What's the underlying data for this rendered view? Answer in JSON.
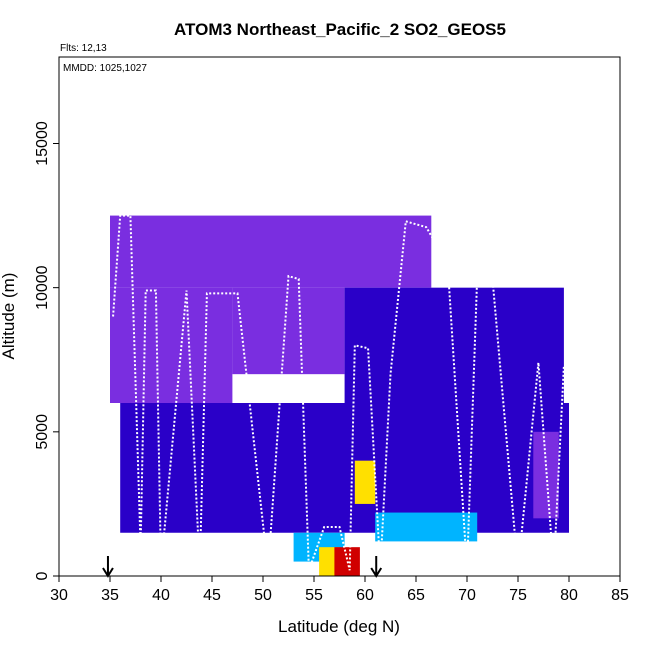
{
  "chart_data": {
    "type": "heatmap",
    "title": "ATOM3 Northeast_Pacific_2 SO2_GEOS5",
    "annotations": [
      "Flts: 12,13",
      "MMDD: 1025,1027"
    ],
    "xlabel": "Latitude (deg N)",
    "ylabel": "Altitude (m)",
    "xlim": [
      30,
      85
    ],
    "ylim": [
      0,
      18000
    ],
    "x_ticks": [
      30,
      35,
      40,
      45,
      50,
      55,
      60,
      65,
      70,
      75,
      80,
      85
    ],
    "y_ticks": [
      0,
      5000,
      10000,
      15000
    ],
    "y_tick_labels": [
      "0",
      "5000",
      "10000",
      "15000"
    ],
    "grid": false,
    "legend": "none",
    "arrow_markers_lat": [
      34.8,
      61.1
    ],
    "colors": {
      "low": "#2a00c8",
      "background": "#7a2ee0",
      "mid": "#00b4ff",
      "high": "#ffe000",
      "peak": "#d00000",
      "flight_track": "#ffffff"
    },
    "heatmap_cells": [
      {
        "lat": [
          35.0,
          66.5
        ],
        "alt": [
          10000,
          12500
        ],
        "value": 0.2
      },
      {
        "lat": [
          35.0,
          47.0
        ],
        "alt": [
          6000,
          10000
        ],
        "value": 0.25
      },
      {
        "lat": [
          47.0,
          58.0
        ],
        "alt": [
          7000,
          10000
        ],
        "value": 0.22
      },
      {
        "lat": [
          58.0,
          79.5
        ],
        "alt": [
          5000,
          10000
        ],
        "value": 0.1
      },
      {
        "lat": [
          36.0,
          80.0
        ],
        "alt": [
          1500,
          6000
        ],
        "value": 0.15
      },
      {
        "lat": [
          53.0,
          58.0
        ],
        "alt": [
          500,
          1500
        ],
        "value": 0.55
      },
      {
        "lat": [
          55.5,
          57.5
        ],
        "alt": [
          0,
          1000
        ],
        "value": 0.85
      },
      {
        "lat": [
          57.0,
          59.5
        ],
        "alt": [
          0,
          1000
        ],
        "value": 0.95
      },
      {
        "lat": [
          59.0,
          61.0
        ],
        "alt": [
          2500,
          4000
        ],
        "value": 0.8
      },
      {
        "lat": [
          61.0,
          71.0
        ],
        "alt": [
          1200,
          2200
        ],
        "value": 0.5
      },
      {
        "lat": [
          76.5,
          79.0
        ],
        "alt": [
          2000,
          5000
        ],
        "value": 0.4
      }
    ],
    "flight_track": {
      "lat": [
        35.3,
        36.0,
        37.0,
        38.0,
        38.5,
        39.5,
        40.0,
        42.5,
        43.8,
        44.5,
        47.5,
        50.5,
        52.5,
        53.5,
        54.5,
        56.0,
        57.5,
        58.5,
        59.0,
        60.3,
        61.5,
        62.5,
        64.0,
        66.0,
        67.0,
        68.0,
        70.0,
        71.0,
        72.5,
        75.0,
        77.0,
        78.5,
        79.5
      ],
      "alt": [
        9000,
        12500,
        12500,
        1000,
        9900,
        9900,
        300,
        9900,
        200,
        9800,
        9800,
        200,
        10400,
        10300,
        200,
        1700,
        1700,
        200,
        8000,
        7900,
        200,
        7000,
        12300,
        12100,
        11500,
        11400,
        200,
        10400,
        10300,
        200,
        7400,
        200,
        7300
      ]
    }
  }
}
